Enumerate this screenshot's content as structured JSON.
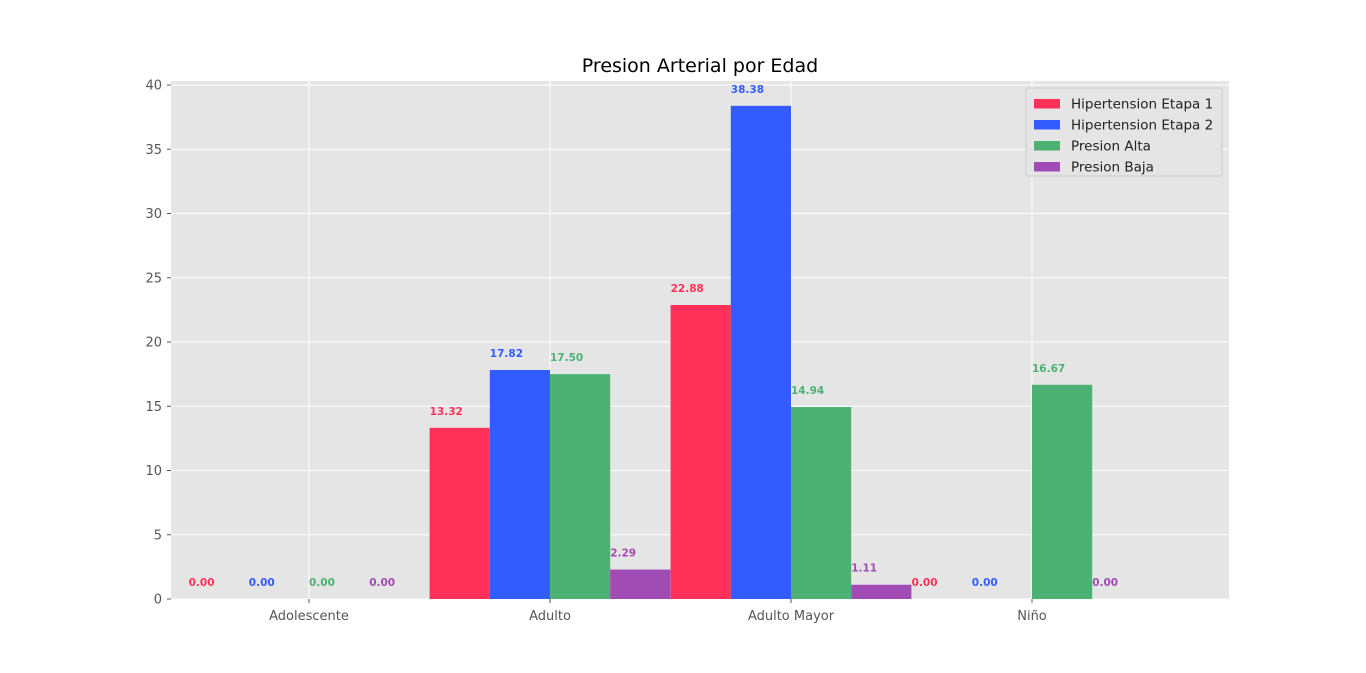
{
  "chart_data": {
    "type": "bar",
    "title": "Presion Arterial por Edad",
    "xlabel": "",
    "ylabel": "",
    "categories": [
      "Adolescente",
      "Adulto",
      "Adulto Mayor",
      "Niño"
    ],
    "ylim": [
      0,
      40
    ],
    "yticks": [
      0,
      5,
      10,
      15,
      20,
      25,
      30,
      35,
      40
    ],
    "grid": true,
    "legend_position": "top-right",
    "value_format": "2-decimals",
    "series": [
      {
        "name": "Hipertension Etapa 1",
        "color": "#ff3158",
        "values": [
          0.0,
          13.32,
          22.88,
          0.0
        ]
      },
      {
        "name": "Hipertension Etapa 2",
        "color": "#335cff",
        "values": [
          0.0,
          17.82,
          38.38,
          0.0
        ]
      },
      {
        "name": "Presion Alta",
        "color": "#4cb273",
        "values": [
          0.0,
          17.5,
          14.94,
          16.67
        ]
      },
      {
        "name": "Presion Baja",
        "color": "#a04cb4",
        "values": [
          0.0,
          2.29,
          1.11,
          0.0
        ]
      }
    ]
  }
}
